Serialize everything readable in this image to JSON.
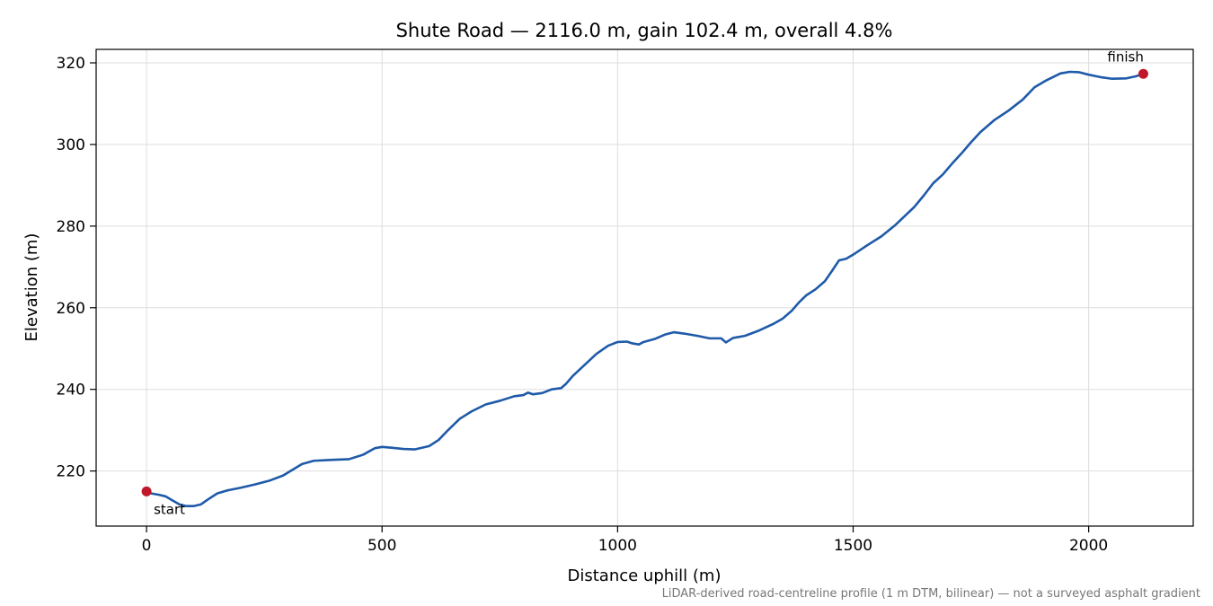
{
  "chart_data": {
    "type": "line",
    "title": "Shute Road — 2116.0 m, gain 102.4 m, overall 4.8%",
    "xlabel": "Distance uphill (m)",
    "ylabel": "Elevation (m)",
    "xlim": [
      -107,
      2222
    ],
    "ylim": [
      206.5,
      323.3
    ],
    "x_ticks": [
      0,
      500,
      1000,
      1500,
      2000
    ],
    "y_ticks": [
      220,
      240,
      260,
      280,
      300,
      320
    ],
    "grid": true,
    "series": [
      {
        "color": "#1f5aa8",
        "points": [
          [
            0,
            215.0
          ],
          [
            10,
            214.5
          ],
          [
            25,
            214.2
          ],
          [
            40,
            213.8
          ],
          [
            55,
            212.8
          ],
          [
            70,
            211.8
          ],
          [
            85,
            211.4
          ],
          [
            100,
            211.4
          ],
          [
            115,
            211.8
          ],
          [
            130,
            213.0
          ],
          [
            150,
            214.5
          ],
          [
            170,
            215.2
          ],
          [
            200,
            215.9
          ],
          [
            230,
            216.7
          ],
          [
            260,
            217.6
          ],
          [
            290,
            218.9
          ],
          [
            310,
            220.3
          ],
          [
            330,
            221.7
          ],
          [
            355,
            222.5
          ],
          [
            390,
            222.7
          ],
          [
            430,
            222.9
          ],
          [
            460,
            224.0
          ],
          [
            485,
            225.6
          ],
          [
            500,
            225.9
          ],
          [
            520,
            225.7
          ],
          [
            545,
            225.4
          ],
          [
            570,
            225.3
          ],
          [
            600,
            226.1
          ],
          [
            620,
            227.6
          ],
          [
            640,
            230.0
          ],
          [
            665,
            232.8
          ],
          [
            690,
            234.6
          ],
          [
            720,
            236.3
          ],
          [
            750,
            237.2
          ],
          [
            780,
            238.3
          ],
          [
            800,
            238.6
          ],
          [
            810,
            239.2
          ],
          [
            820,
            238.8
          ],
          [
            840,
            239.1
          ],
          [
            860,
            240.0
          ],
          [
            880,
            240.3
          ],
          [
            890,
            241.3
          ],
          [
            905,
            243.3
          ],
          [
            930,
            246.0
          ],
          [
            955,
            248.7
          ],
          [
            980,
            250.7
          ],
          [
            1000,
            251.6
          ],
          [
            1020,
            251.7
          ],
          [
            1030,
            251.3
          ],
          [
            1045,
            251.0
          ],
          [
            1055,
            251.6
          ],
          [
            1080,
            252.4
          ],
          [
            1100,
            253.4
          ],
          [
            1120,
            254.0
          ],
          [
            1145,
            253.6
          ],
          [
            1170,
            253.1
          ],
          [
            1195,
            252.5
          ],
          [
            1220,
            252.5
          ],
          [
            1230,
            251.5
          ],
          [
            1245,
            252.6
          ],
          [
            1270,
            253.1
          ],
          [
            1300,
            254.4
          ],
          [
            1330,
            256.0
          ],
          [
            1350,
            257.3
          ],
          [
            1370,
            259.3
          ],
          [
            1385,
            261.3
          ],
          [
            1400,
            263.0
          ],
          [
            1420,
            264.5
          ],
          [
            1440,
            266.5
          ],
          [
            1455,
            269.0
          ],
          [
            1470,
            271.6
          ],
          [
            1485,
            272.0
          ],
          [
            1500,
            273.0
          ],
          [
            1530,
            275.3
          ],
          [
            1560,
            277.5
          ],
          [
            1590,
            280.3
          ],
          [
            1610,
            282.5
          ],
          [
            1630,
            284.7
          ],
          [
            1650,
            287.5
          ],
          [
            1670,
            290.5
          ],
          [
            1690,
            292.6
          ],
          [
            1710,
            295.3
          ],
          [
            1730,
            297.8
          ],
          [
            1750,
            300.5
          ],
          [
            1770,
            303.0
          ],
          [
            1800,
            306.0
          ],
          [
            1830,
            308.3
          ],
          [
            1860,
            311.0
          ],
          [
            1885,
            314.0
          ],
          [
            1910,
            315.7
          ],
          [
            1940,
            317.4
          ],
          [
            1960,
            317.8
          ],
          [
            1980,
            317.7
          ],
          [
            2000,
            317.1
          ],
          [
            2025,
            316.5
          ],
          [
            2050,
            316.1
          ],
          [
            2080,
            316.2
          ],
          [
            2100,
            316.7
          ],
          [
            2116,
            317.3
          ]
        ]
      }
    ],
    "markers": [
      {
        "x": 0,
        "y": 215.0,
        "label": "start",
        "color": "#c0182a"
      },
      {
        "x": 2116,
        "y": 317.3,
        "label": "finish",
        "color": "#c0182a"
      }
    ],
    "footnote": "LiDAR-derived road-centreline profile (1 m DTM, bilinear) — not a surveyed asphalt gradient"
  }
}
